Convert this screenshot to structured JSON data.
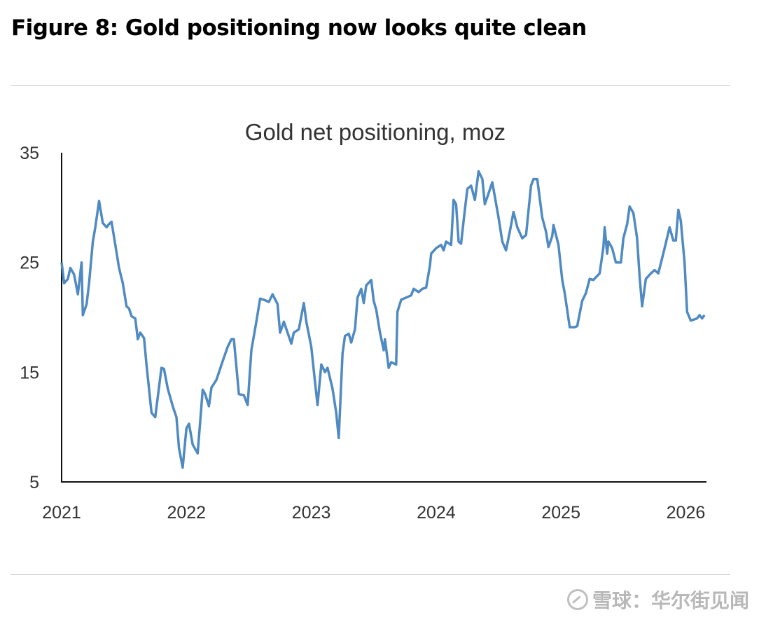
{
  "figure_title": "Figure 8: Gold positioning now looks quite clean",
  "watermark": "雪球：华尔街见闻",
  "chart_data": {
    "type": "line",
    "title": "Gold net positioning, moz",
    "xlabel": "",
    "ylabel": "",
    "xlim": [
      2021,
      2026.16
    ],
    "ylim": [
      5,
      35
    ],
    "x_ticks": [
      "2021",
      "2022",
      "2023",
      "2024",
      "2025",
      "2026"
    ],
    "y_ticks": [
      "35",
      "25",
      "15",
      "5"
    ],
    "grid": false,
    "line_color": "#4f8ac2",
    "x": [
      2021.0,
      2021.02,
      2021.05,
      2021.07,
      2021.1,
      2021.13,
      2021.16,
      2021.17,
      2021.2,
      2021.22,
      2021.25,
      2021.27,
      2021.3,
      2021.33,
      2021.36,
      2021.38,
      2021.4,
      2021.43,
      2021.46,
      2021.49,
      2021.52,
      2021.54,
      2021.56,
      2021.59,
      2021.61,
      2021.63,
      2021.66,
      2021.68,
      2021.72,
      2021.75,
      2021.8,
      2021.82,
      2021.85,
      2021.89,
      2021.92,
      2021.94,
      2021.97,
      2022.0,
      2022.02,
      2022.05,
      2022.09,
      2022.13,
      2022.15,
      2022.18,
      2022.2,
      2022.24,
      2022.29,
      2022.33,
      2022.36,
      2022.38,
      2022.42,
      2022.46,
      2022.49,
      2022.52,
      2022.56,
      2022.59,
      2022.62,
      2022.66,
      2022.69,
      2022.73,
      2022.75,
      2022.78,
      2022.81,
      2022.84,
      2022.86,
      2022.9,
      2022.94,
      2022.96,
      2023.0,
      2023.03,
      2023.05,
      2023.08,
      2023.11,
      2023.13,
      2023.17,
      2023.2,
      2023.22,
      2023.25,
      2023.27,
      2023.3,
      2023.32,
      2023.35,
      2023.37,
      2023.4,
      2023.42,
      2023.44,
      2023.48,
      2023.5,
      2023.52,
      2023.55,
      2023.58,
      2023.59,
      2023.62,
      2023.64,
      2023.68,
      2023.69,
      2023.72,
      2023.76,
      2023.8,
      2023.82,
      2023.86,
      2023.89,
      2023.92,
      2023.95,
      2023.96,
      2024.0,
      2024.04,
      2024.06,
      2024.08,
      2024.12,
      2024.14,
      2024.16,
      2024.18,
      2024.2,
      2024.23,
      2024.25,
      2024.28,
      2024.31,
      2024.34,
      2024.37,
      2024.39,
      2024.42,
      2024.45,
      2024.5,
      2024.53,
      2024.56,
      2024.59,
      2024.62,
      2024.65,
      2024.69,
      2024.72,
      2024.76,
      2024.78,
      2024.81,
      2024.85,
      2024.88,
      2024.9,
      2024.93,
      2024.94,
      2024.98,
      2025.01,
      2025.03,
      2025.07,
      2025.11,
      2025.13,
      2025.17,
      2025.2,
      2025.23,
      2025.26,
      2025.31,
      2025.34,
      2025.35,
      2025.37,
      2025.38,
      2025.41,
      2025.44,
      2025.48,
      2025.5,
      2025.53,
      2025.55,
      2025.58,
      2025.61,
      2025.63,
      2025.65,
      2025.68,
      2025.72,
      2025.75,
      2025.78,
      2025.83,
      2025.87,
      2025.9,
      2025.92,
      2025.94,
      2025.96,
      2025.99,
      2026.01,
      2026.04,
      2026.09,
      2026.11,
      2026.13,
      2026.15
    ],
    "values": [
      25.0,
      23.1,
      23.5,
      24.5,
      23.9,
      22.1,
      25.0,
      20.2,
      21.2,
      23.1,
      26.9,
      28.2,
      30.6,
      28.6,
      28.2,
      28.5,
      28.7,
      26.6,
      24.5,
      23.1,
      21.0,
      20.8,
      20.1,
      19.9,
      18.0,
      18.6,
      18.1,
      15.7,
      11.3,
      10.9,
      15.4,
      15.3,
      13.5,
      11.9,
      10.9,
      8.1,
      6.3,
      9.9,
      10.3,
      8.4,
      7.6,
      13.4,
      13.0,
      11.9,
      13.6,
      14.3,
      16.0,
      17.3,
      18.0,
      18.0,
      13.0,
      12.9,
      12.0,
      17.0,
      19.6,
      21.7,
      21.6,
      21.4,
      22.1,
      21.2,
      18.6,
      19.6,
      18.6,
      17.6,
      18.6,
      18.9,
      21.3,
      19.6,
      17.3,
      14.1,
      12.0,
      15.7,
      15.0,
      15.4,
      13.5,
      11.3,
      9.0,
      16.7,
      18.3,
      18.5,
      17.7,
      18.9,
      21.8,
      22.6,
      21.3,
      22.9,
      23.4,
      21.5,
      20.7,
      18.6,
      17.0,
      18.0,
      15.4,
      15.9,
      15.7,
      20.5,
      21.6,
      21.8,
      22.0,
      22.6,
      22.3,
      22.6,
      22.7,
      24.7,
      25.8,
      26.3,
      26.6,
      26.1,
      26.9,
      26.6,
      30.7,
      30.3,
      26.9,
      26.7,
      29.8,
      31.7,
      32.0,
      30.7,
      33.3,
      32.6,
      30.3,
      31.3,
      32.3,
      29.1,
      26.9,
      26.1,
      27.8,
      29.6,
      28.2,
      27.2,
      27.5,
      32.0,
      32.6,
      32.6,
      29.1,
      27.8,
      26.4,
      27.4,
      28.4,
      26.6,
      23.4,
      22.2,
      19.1,
      19.1,
      19.2,
      21.5,
      22.2,
      23.5,
      23.4,
      24.0,
      26.4,
      28.2,
      25.8,
      26.9,
      26.3,
      25.0,
      25.0,
      27.2,
      28.5,
      30.1,
      29.5,
      27.2,
      23.7,
      21.0,
      23.5,
      24.0,
      24.3,
      24.0,
      26.3,
      28.2,
      27.0,
      27.0,
      29.8,
      28.8,
      25.0,
      20.5,
      19.7,
      19.9,
      20.2,
      19.9,
      20.2
    ]
  }
}
